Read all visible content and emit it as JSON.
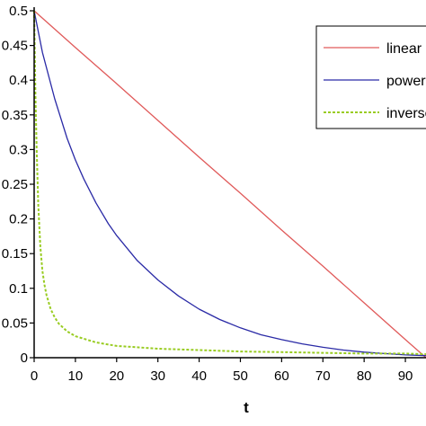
{
  "chart_data": {
    "type": "line",
    "title": "",
    "xlabel": "t",
    "ylabel": "",
    "xlim": [
      0,
      95
    ],
    "ylim": [
      0,
      0.5
    ],
    "x_ticks": [
      0,
      10,
      20,
      30,
      40,
      50,
      60,
      70,
      80,
      90
    ],
    "x_tick_labels": [
      "0",
      "10",
      "20",
      "30",
      "40",
      "50",
      "60",
      "70",
      "80",
      "90"
    ],
    "y_ticks": [
      0,
      0.05,
      0.1,
      0.15,
      0.2,
      0.25,
      0.3,
      0.35,
      0.4,
      0.45,
      0.5
    ],
    "y_tick_labels": [
      "0",
      "0.05",
      "0.1",
      "0.15",
      "0.2",
      "0.25",
      "0.3",
      "0.35",
      "0.4",
      "0.45",
      "0.5"
    ],
    "grid": false,
    "legend_position": "top-right",
    "series": [
      {
        "name": "linear",
        "color": "#e05a5a",
        "dash": "solid",
        "x": [
          0,
          10,
          20,
          30,
          40,
          50,
          60,
          70,
          80,
          90,
          95
        ],
        "y": [
          0.5,
          0.447,
          0.395,
          0.342,
          0.289,
          0.237,
          0.184,
          0.132,
          0.079,
          0.026,
          0.0
        ]
      },
      {
        "name": "power",
        "color": "#2a2aa6",
        "dash": "solid",
        "x": [
          0,
          2,
          5,
          8,
          10,
          12,
          15,
          18,
          20,
          25,
          30,
          35,
          40,
          45,
          50,
          55,
          60,
          65,
          70,
          75,
          80,
          85,
          90,
          95
        ],
        "y": [
          0.5,
          0.44,
          0.373,
          0.316,
          0.285,
          0.258,
          0.223,
          0.193,
          0.176,
          0.14,
          0.112,
          0.089,
          0.07,
          0.055,
          0.043,
          0.033,
          0.026,
          0.02,
          0.015,
          0.011,
          0.008,
          0.006,
          0.004,
          0.003
        ]
      },
      {
        "name": "inverse",
        "color": "#99cc22",
        "dash": "dashed",
        "x": [
          0,
          0.3,
          0.6,
          1,
          1.5,
          2,
          2.5,
          3,
          4,
          5,
          6,
          8,
          10,
          15,
          20,
          25,
          30,
          40,
          50,
          60,
          70,
          80,
          90,
          95
        ],
        "y": [
          0.5,
          0.38,
          0.3,
          0.22,
          0.16,
          0.125,
          0.105,
          0.09,
          0.07,
          0.058,
          0.049,
          0.038,
          0.031,
          0.022,
          0.017,
          0.015,
          0.013,
          0.011,
          0.009,
          0.008,
          0.007,
          0.006,
          0.006,
          0.005
        ]
      }
    ]
  }
}
